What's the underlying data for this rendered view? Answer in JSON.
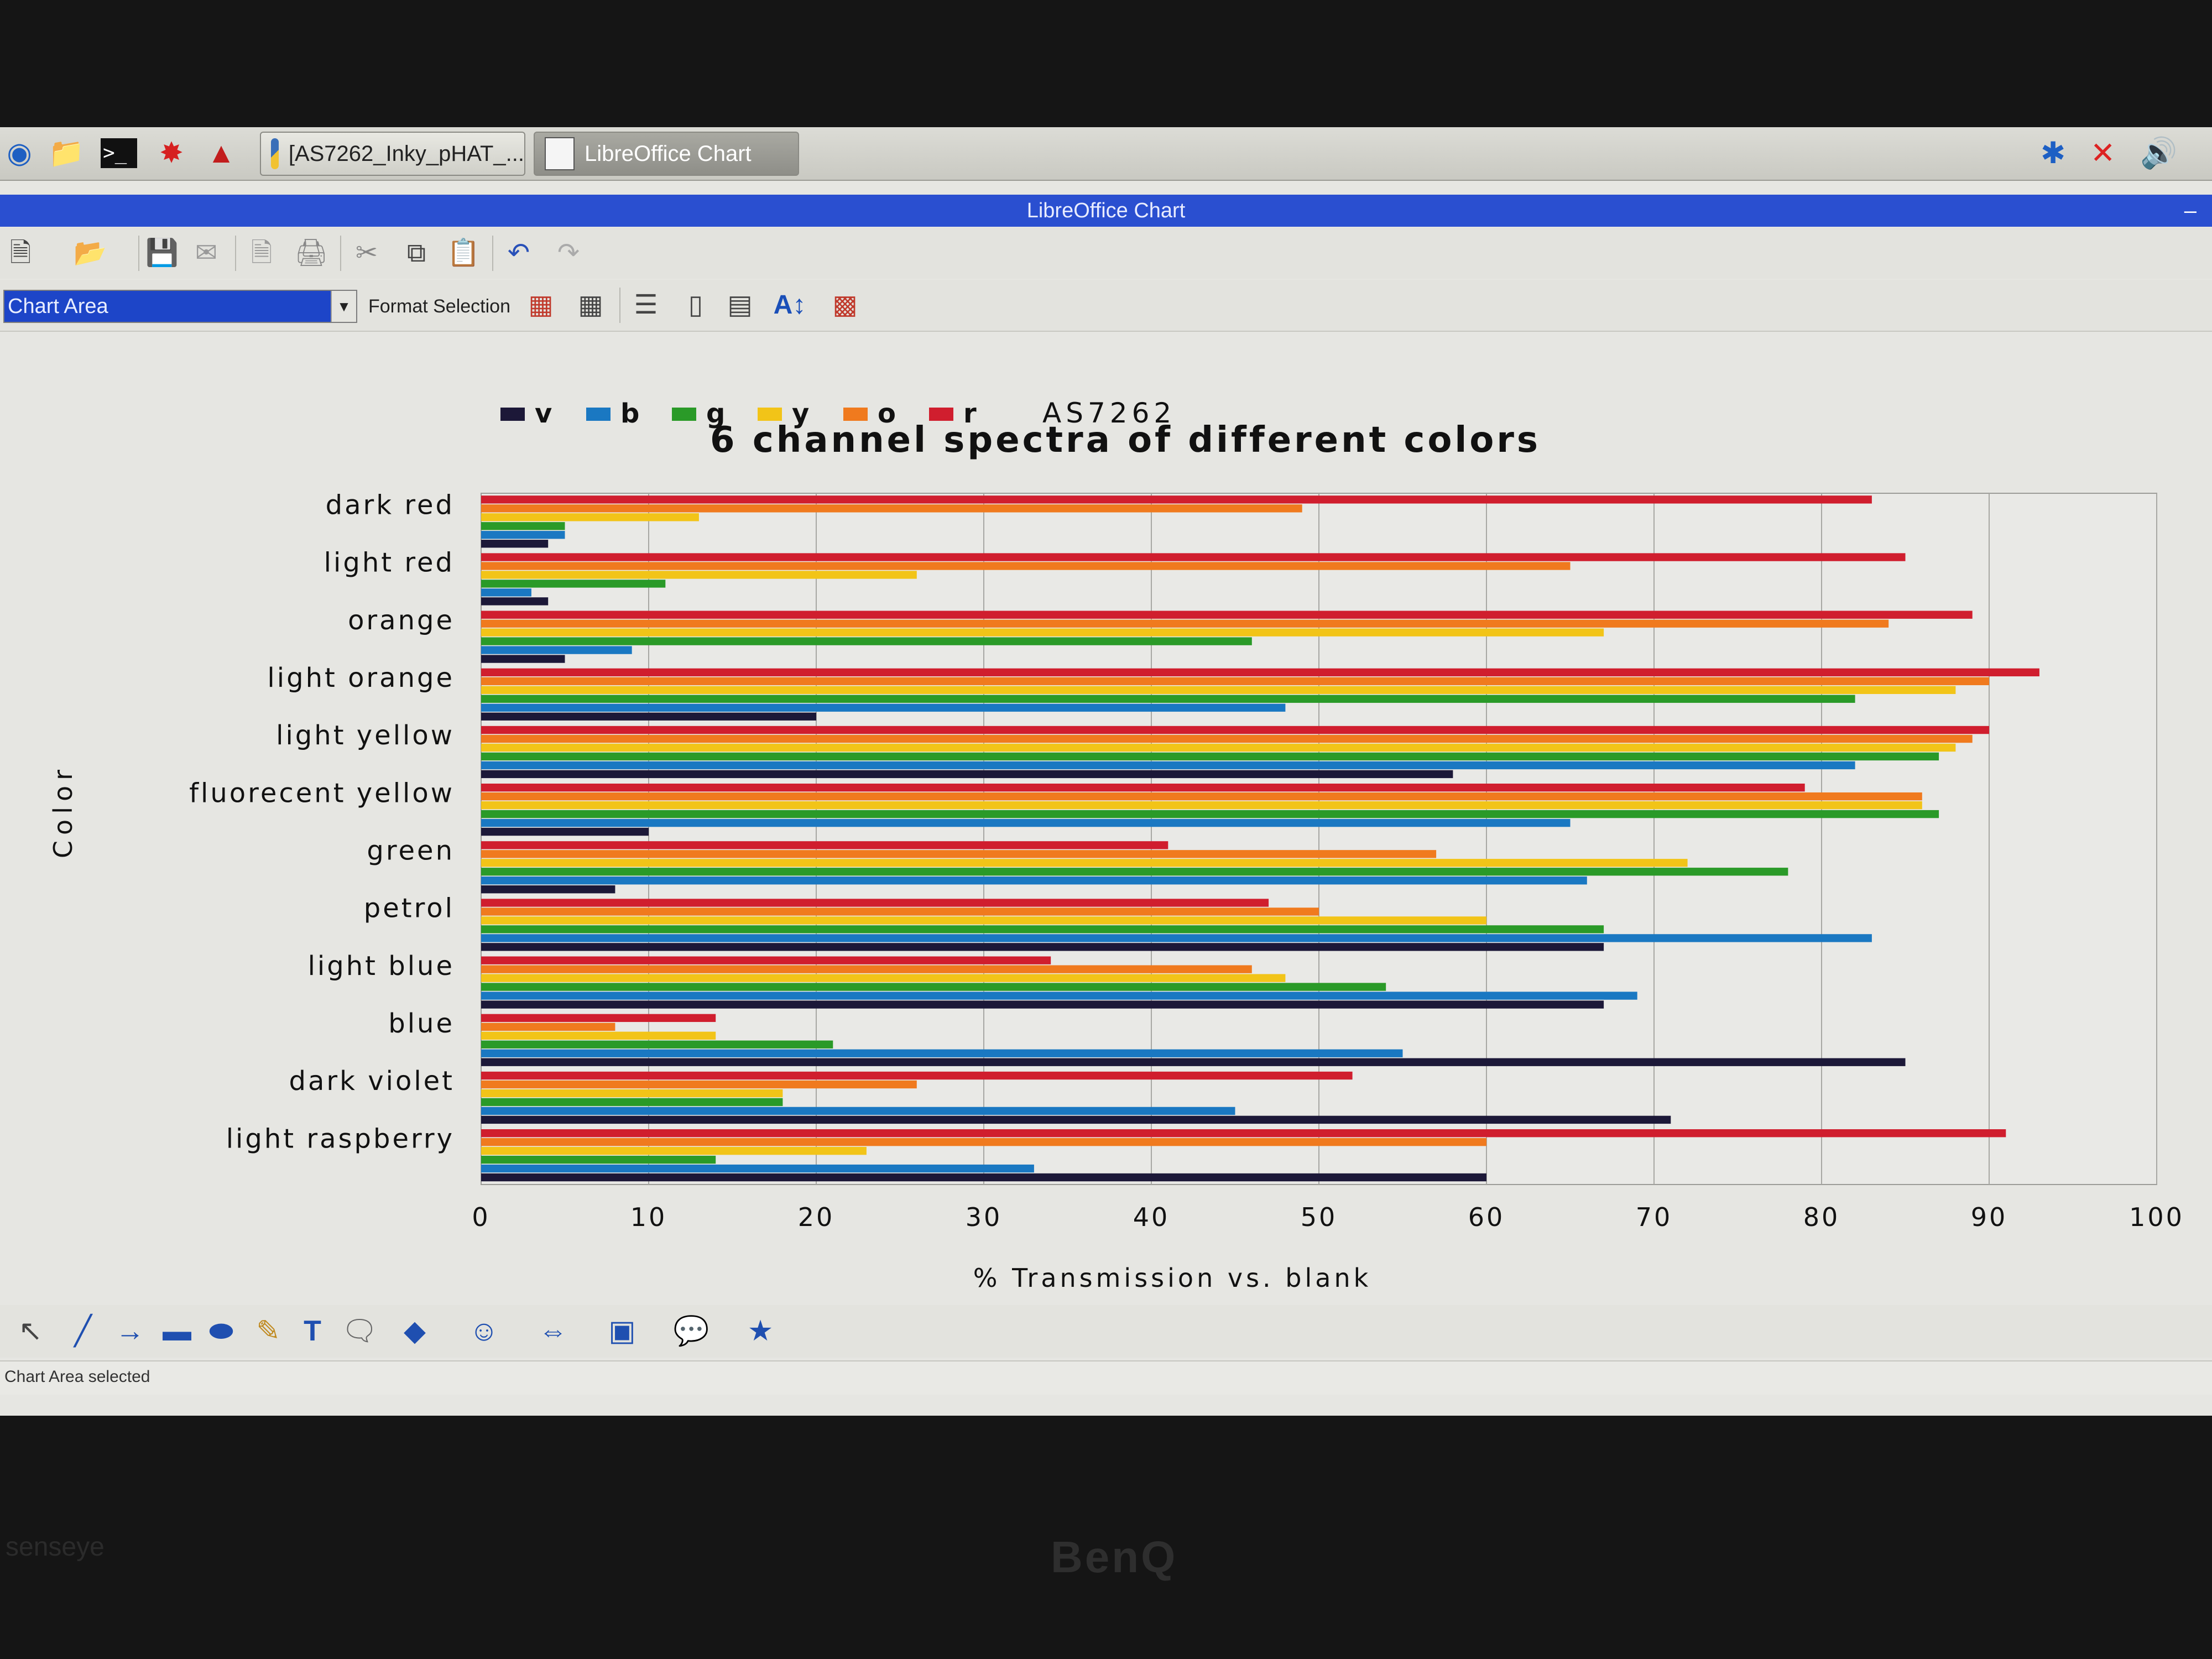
{
  "taskbar": {
    "tasks": [
      {
        "label": "[AS7262_Inky_pHAT_..."
      },
      {
        "label": "LibreOffice Chart"
      }
    ]
  },
  "window": {
    "title": "LibreOffice Chart"
  },
  "formatting_toolbar": {
    "selected_element": "Chart Area",
    "format_selection_label": "Format Selection"
  },
  "status": {
    "text": "Chart Area selected"
  },
  "monitor": {
    "brand": "BenQ",
    "label": "senseye"
  },
  "colors": {
    "v": "#1c1838",
    "b": "#1a78c2",
    "g": "#2a9a28",
    "y": "#f2c418",
    "o": "#f07a1e",
    "r": "#d01e2e",
    "title_bar": "#2a4fd0",
    "selection": "#1d45c8"
  },
  "chart_data": {
    "type": "bar",
    "orientation": "horizontal",
    "title": "6 channel spectra of different colors",
    "xlabel": "% Transmission vs. blank",
    "ylabel": "Color",
    "xlim": [
      0,
      100
    ],
    "x_ticks": [
      "0",
      "10",
      "20",
      "30",
      "40",
      "50",
      "60",
      "70",
      "80",
      "90",
      "100"
    ],
    "grid": "vertical",
    "legend_position": "top",
    "legend_note": "AS7262",
    "categories": [
      "dark red",
      "light red",
      "orange",
      "light orange",
      "light yellow",
      "fluorecent yellow",
      "green",
      "petrol",
      "light blue",
      "blue",
      "dark violet",
      "light raspberry"
    ],
    "series": [
      {
        "name": "v",
        "values": [
          4,
          4,
          5,
          20,
          58,
          10,
          8,
          67,
          67,
          85,
          71,
          60
        ]
      },
      {
        "name": "b",
        "values": [
          5,
          3,
          9,
          48,
          82,
          65,
          66,
          83,
          69,
          55,
          45,
          33
        ]
      },
      {
        "name": "g",
        "values": [
          5,
          11,
          46,
          82,
          87,
          87,
          78,
          67,
          54,
          21,
          18,
          14
        ]
      },
      {
        "name": "y",
        "values": [
          13,
          26,
          67,
          88,
          88,
          86,
          72,
          60,
          48,
          14,
          18,
          23
        ]
      },
      {
        "name": "o",
        "values": [
          49,
          65,
          84,
          90,
          89,
          86,
          57,
          50,
          46,
          8,
          26,
          60
        ]
      },
      {
        "name": "r",
        "values": [
          83,
          85,
          89,
          93,
          90,
          79,
          41,
          47,
          34,
          14,
          52,
          91
        ]
      }
    ]
  }
}
